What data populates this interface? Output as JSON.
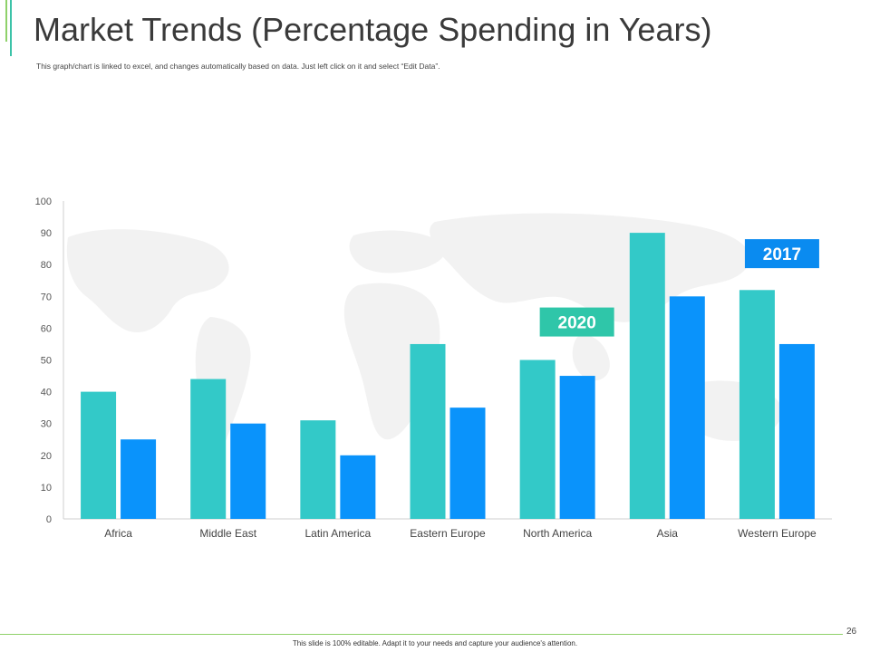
{
  "slide": {
    "title": "Market Trends (Percentage Spending in Years)",
    "subtitle": "This graph/chart is linked to excel, and changes automatically based on data. Just left click on it and select “Edit Data”.",
    "page_number": "26",
    "footer_note": "This slide is 100% editable. Adapt it to your needs and capture your audience's attention."
  },
  "colors": {
    "series_2020": "#33c9c8",
    "series_2017": "#0a93fb",
    "label_2020_bg": "#2fc6a9",
    "label_2017_bg": "#0a8bf0",
    "accent_green": "#8fd16a",
    "axis": "#cfcfcf",
    "map": "#f2f2f2"
  },
  "chart_data": {
    "type": "bar",
    "title": "",
    "xlabel": "",
    "ylabel": "",
    "ylim": [
      0,
      100
    ],
    "yticks": [
      0,
      10,
      20,
      30,
      40,
      50,
      60,
      70,
      80,
      90,
      100
    ],
    "categories": [
      "Africa",
      "Middle East",
      "Latin America",
      "Eastern Europe",
      "North America",
      "Asia",
      "Western Europe"
    ],
    "series": [
      {
        "name": "2020",
        "values": [
          40,
          44,
          31,
          55,
          50,
          90,
          72
        ]
      },
      {
        "name": "2017",
        "values": [
          25,
          30,
          20,
          35,
          45,
          70,
          55
        ]
      }
    ],
    "annotations": [
      {
        "text": "2020",
        "series": "2020",
        "near_category": "North America"
      },
      {
        "text": "2017",
        "series": "2017",
        "near_category": "Western Europe"
      }
    ]
  }
}
